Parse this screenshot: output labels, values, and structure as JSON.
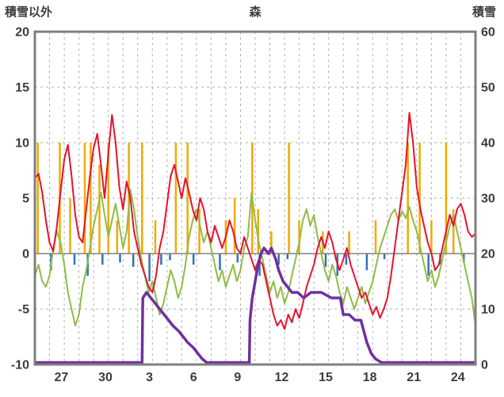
{
  "chart_data": {
    "type": "line",
    "title": "森",
    "left_axis": {
      "label": "積雪以外",
      "min": -10,
      "max": 20,
      "ticks": [
        20,
        15,
        10,
        5,
        0,
        -5,
        -10
      ]
    },
    "right_axis": {
      "label": "積雪",
      "min": 0,
      "max": 60,
      "ticks": [
        60,
        50,
        40,
        30,
        20,
        10,
        0
      ]
    },
    "x_axis": {
      "tick_labels": [
        "27",
        "30",
        "3",
        "6",
        "9",
        "12",
        "15",
        "18",
        "21",
        "24"
      ],
      "tick_days": [
        1.8,
        4.8,
        7.8,
        10.8,
        13.8,
        16.8,
        19.8,
        22.8,
        25.8,
        28.8
      ],
      "domain_days": [
        0,
        30
      ],
      "gridline_every_day": true
    },
    "colors": {
      "red_line": "#e8112d",
      "green_line": "#8fbc45",
      "orange_bar": "#f2a900",
      "blue_bar": "#2e74b5",
      "purple_line": "#7030a0",
      "frame": "#7f7f7f",
      "grid": "#b0b0b0",
      "zero_line": "#808080",
      "label_text": "#3c3c3c"
    },
    "series": [
      {
        "name": "temperature-red",
        "axis": "left",
        "type": "line",
        "color_key": "red_line",
        "step_days": 0.25,
        "values": [
          6.8,
          7.2,
          5.5,
          3.0,
          1.0,
          0.2,
          2.5,
          5.5,
          8.5,
          9.8,
          7.0,
          3.5,
          1.5,
          1.0,
          4.0,
          7.0,
          9.5,
          10.8,
          8.0,
          5.0,
          9.0,
          12.5,
          10.0,
          6.0,
          4.0,
          6.5,
          5.0,
          2.0,
          0.5,
          -1.0,
          -2.0,
          -3.0,
          -3.5,
          -2.0,
          0.5,
          2.0,
          4.5,
          7.0,
          8.0,
          6.5,
          5.0,
          6.8,
          5.5,
          4.0,
          3.0,
          5.0,
          4.0,
          2.0,
          1.0,
          2.5,
          1.5,
          0.5,
          1.5,
          3.0,
          2.0,
          0.5,
          0.0,
          1.5,
          0.5,
          -0.5,
          -1.5,
          -0.5,
          -1.0,
          -2.5,
          -4.0,
          -5.5,
          -6.5,
          -6.0,
          -6.8,
          -5.5,
          -6.2,
          -5.0,
          -5.8,
          -4.5,
          -3.0,
          -2.0,
          -1.0,
          0.5,
          1.5,
          0.5,
          2.0,
          1.0,
          -0.5,
          -1.5,
          -0.5,
          0.5,
          -1.0,
          -2.0,
          -3.0,
          -4.0,
          -3.5,
          -4.5,
          -5.5,
          -4.8,
          -5.8,
          -5.0,
          -4.0,
          -2.0,
          0.5,
          3.0,
          5.5,
          8.0,
          12.7,
          10.0,
          6.0,
          4.0,
          2.5,
          1.0,
          0.0,
          -1.5,
          -1.0,
          0.5,
          2.0,
          3.5,
          2.5,
          4.0,
          4.5,
          3.5,
          2.0,
          1.5,
          1.8
        ]
      },
      {
        "name": "temperature-green",
        "axis": "left",
        "type": "line",
        "color_key": "green_line",
        "step_days": 0.25,
        "values": [
          -2.0,
          -1.0,
          -2.5,
          -3.0,
          -2.0,
          0.5,
          2.0,
          1.0,
          -1.0,
          -3.5,
          -5.0,
          -6.5,
          -5.5,
          -3.0,
          -1.5,
          0.5,
          2.5,
          4.0,
          5.5,
          3.5,
          1.5,
          3.0,
          4.5,
          2.5,
          0.5,
          2.0,
          5.8,
          4.0,
          1.5,
          -0.5,
          -2.0,
          -3.5,
          -2.5,
          -4.0,
          -5.5,
          -4.5,
          -3.0,
          -1.5,
          -2.5,
          -4.0,
          -3.0,
          -1.0,
          1.5,
          3.0,
          4.0,
          2.5,
          1.0,
          2.0,
          0.5,
          -1.0,
          -2.5,
          -1.5,
          -3.0,
          -2.0,
          -1.0,
          -2.5,
          -1.5,
          0.5,
          1.5,
          5.5,
          3.0,
          1.0,
          -0.5,
          -2.0,
          -3.5,
          -2.5,
          -4.0,
          -3.0,
          -4.5,
          -3.5,
          -2.0,
          -0.5,
          1.0,
          3.0,
          4.0,
          2.5,
          3.5,
          1.5,
          0.0,
          -1.5,
          -2.5,
          -1.0,
          -2.0,
          -3.5,
          -4.5,
          -3.0,
          -4.0,
          -5.0,
          -4.0,
          -3.0,
          -4.5,
          -3.5,
          -2.5,
          -1.0,
          0.5,
          1.5,
          2.5,
          3.5,
          4.0,
          3.0,
          3.8,
          3.2,
          4.2,
          3.0,
          2.0,
          0.5,
          -1.0,
          -2.5,
          -1.5,
          -3.0,
          -2.0,
          -0.5,
          1.0,
          2.5,
          3.5,
          2.0,
          0.5,
          -1.0,
          -2.5,
          -4.0,
          -6.5
        ]
      },
      {
        "name": "precip-orange-bars",
        "axis": "left",
        "type": "bar",
        "color_key": "orange_bar",
        "points": [
          [
            0.2,
            10
          ],
          [
            1.7,
            10
          ],
          [
            2.4,
            5
          ],
          [
            3.4,
            10
          ],
          [
            3.8,
            10
          ],
          [
            4.4,
            8
          ],
          [
            5.0,
            10
          ],
          [
            5.6,
            3
          ],
          [
            6.4,
            10
          ],
          [
            7.3,
            10
          ],
          [
            8.2,
            3
          ],
          [
            9.6,
            10
          ],
          [
            10.4,
            10
          ],
          [
            11.2,
            4
          ],
          [
            13.0,
            3
          ],
          [
            13.6,
            5
          ],
          [
            14.8,
            10
          ],
          [
            15.2,
            4
          ],
          [
            16.1,
            2
          ],
          [
            17.3,
            10
          ],
          [
            18.0,
            3
          ],
          [
            19.6,
            2
          ],
          [
            21.4,
            2
          ],
          [
            23.2,
            3
          ],
          [
            25.4,
            10
          ],
          [
            26.2,
            10
          ],
          [
            27.0,
            3
          ],
          [
            28.0,
            10
          ],
          [
            28.5,
            4
          ]
        ]
      },
      {
        "name": "precip-blue-bars",
        "axis": "left",
        "type": "bar",
        "color_key": "blue_bar",
        "points": [
          [
            1.1,
            -1.5
          ],
          [
            2.7,
            -1.0
          ],
          [
            3.6,
            -2.0
          ],
          [
            4.6,
            -1.0
          ],
          [
            5.8,
            -0.8
          ],
          [
            6.7,
            -1.2
          ],
          [
            7.8,
            -2.5
          ],
          [
            8.6,
            -1.0
          ],
          [
            9.2,
            -0.6
          ],
          [
            10.8,
            -1.0
          ],
          [
            12.6,
            -1.5
          ],
          [
            13.8,
            -0.8
          ],
          [
            15.3,
            -2.0
          ],
          [
            16.6,
            -1.0
          ],
          [
            17.2,
            -0.5
          ],
          [
            19.8,
            -1.2
          ],
          [
            20.6,
            -2.0
          ],
          [
            21.2,
            -1.0
          ],
          [
            22.6,
            -1.5
          ],
          [
            23.8,
            -0.5
          ],
          [
            26.8,
            -2.0
          ],
          [
            27.6,
            -1.0
          ],
          [
            29.2,
            -0.8
          ]
        ]
      },
      {
        "name": "snow-depth-purple",
        "axis": "right",
        "type": "step",
        "color_key": "purple_line",
        "points_cm": [
          [
            0,
            0
          ],
          [
            7.3,
            0
          ],
          [
            7.35,
            12
          ],
          [
            7.6,
            13
          ],
          [
            7.9,
            12
          ],
          [
            8.2,
            11
          ],
          [
            8.5,
            10
          ],
          [
            8.8,
            9
          ],
          [
            9.1,
            8
          ],
          [
            9.4,
            7
          ],
          [
            9.8,
            6
          ],
          [
            10.1,
            5
          ],
          [
            10.4,
            4
          ],
          [
            10.8,
            3
          ],
          [
            11.1,
            2
          ],
          [
            11.4,
            1
          ],
          [
            11.7,
            0
          ],
          [
            14.6,
            0
          ],
          [
            14.65,
            8
          ],
          [
            14.8,
            12
          ],
          [
            15.0,
            15
          ],
          [
            15.2,
            18
          ],
          [
            15.4,
            20
          ],
          [
            15.6,
            21
          ],
          [
            15.9,
            20
          ],
          [
            16.1,
            21
          ],
          [
            16.4,
            19
          ],
          [
            16.6,
            17
          ],
          [
            16.9,
            15
          ],
          [
            17.2,
            14
          ],
          [
            17.5,
            13
          ],
          [
            17.9,
            13
          ],
          [
            18.3,
            12
          ],
          [
            18.8,
            13
          ],
          [
            19.5,
            13
          ],
          [
            20.2,
            12
          ],
          [
            20.8,
            12
          ],
          [
            21.0,
            9
          ],
          [
            21.4,
            9
          ],
          [
            21.8,
            8
          ],
          [
            22.2,
            8
          ],
          [
            22.6,
            4
          ],
          [
            22.9,
            2
          ],
          [
            23.2,
            1
          ],
          [
            23.6,
            0
          ],
          [
            30,
            0
          ]
        ]
      }
    ]
  }
}
